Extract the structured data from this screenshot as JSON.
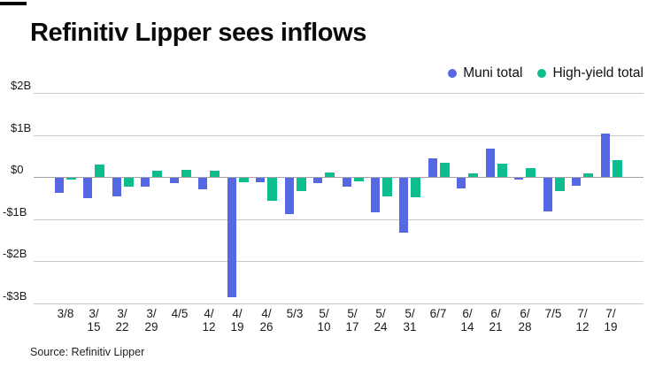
{
  "page": {
    "title": "Refinitiv Lipper sees inflows",
    "source": "Source: Refinitiv Lipper"
  },
  "legend": {
    "items": [
      {
        "label": "Muni total",
        "color": "#5567e2"
      },
      {
        "label": "High-yield total",
        "color": "#0dbd8d"
      }
    ]
  },
  "chart_data": {
    "type": "bar",
    "title": "Refinitiv Lipper sees inflows",
    "unit_label": "billions of dollars",
    "categories": [
      "3/8",
      "3/15",
      "3/22",
      "3/29",
      "4/5",
      "4/12",
      "4/19",
      "4/26",
      "5/3",
      "5/10",
      "5/17",
      "5/24",
      "5/31",
      "6/7",
      "6/14",
      "6/21",
      "6/28",
      "7/5",
      "7/12",
      "7/19"
    ],
    "series": [
      {
        "name": "Muni total",
        "color": "#5567e2",
        "values": [
          -0.35,
          -0.48,
          -0.45,
          -0.2,
          -0.12,
          -0.28,
          -2.85,
          -0.11,
          -0.87,
          -0.12,
          -0.22,
          -0.82,
          -1.31,
          0.44,
          -0.25,
          0.67,
          -0.03,
          -0.81,
          -0.19,
          1.04
        ]
      },
      {
        "name": "High-yield total",
        "color": "#0dbd8d",
        "values": [
          -0.03,
          0.3,
          -0.22,
          0.15,
          0.16,
          0.15,
          -0.11,
          -0.54,
          -0.32,
          0.11,
          -0.08,
          -0.44,
          -0.47,
          0.34,
          0.08,
          0.32,
          0.22,
          -0.31,
          0.09,
          0.41
        ]
      }
    ],
    "ylim": [
      -3,
      2
    ],
    "y_ticks": [
      {
        "value": 2,
        "label": "$2B"
      },
      {
        "value": 1,
        "label": "$1B"
      },
      {
        "value": 0,
        "label": "$0"
      },
      {
        "value": -1,
        "label": "-$1B"
      },
      {
        "value": -2,
        "label": "-$2B"
      },
      {
        "value": -3,
        "label": "-$3B"
      }
    ],
    "grid": true,
    "legend_position": "top-right"
  }
}
